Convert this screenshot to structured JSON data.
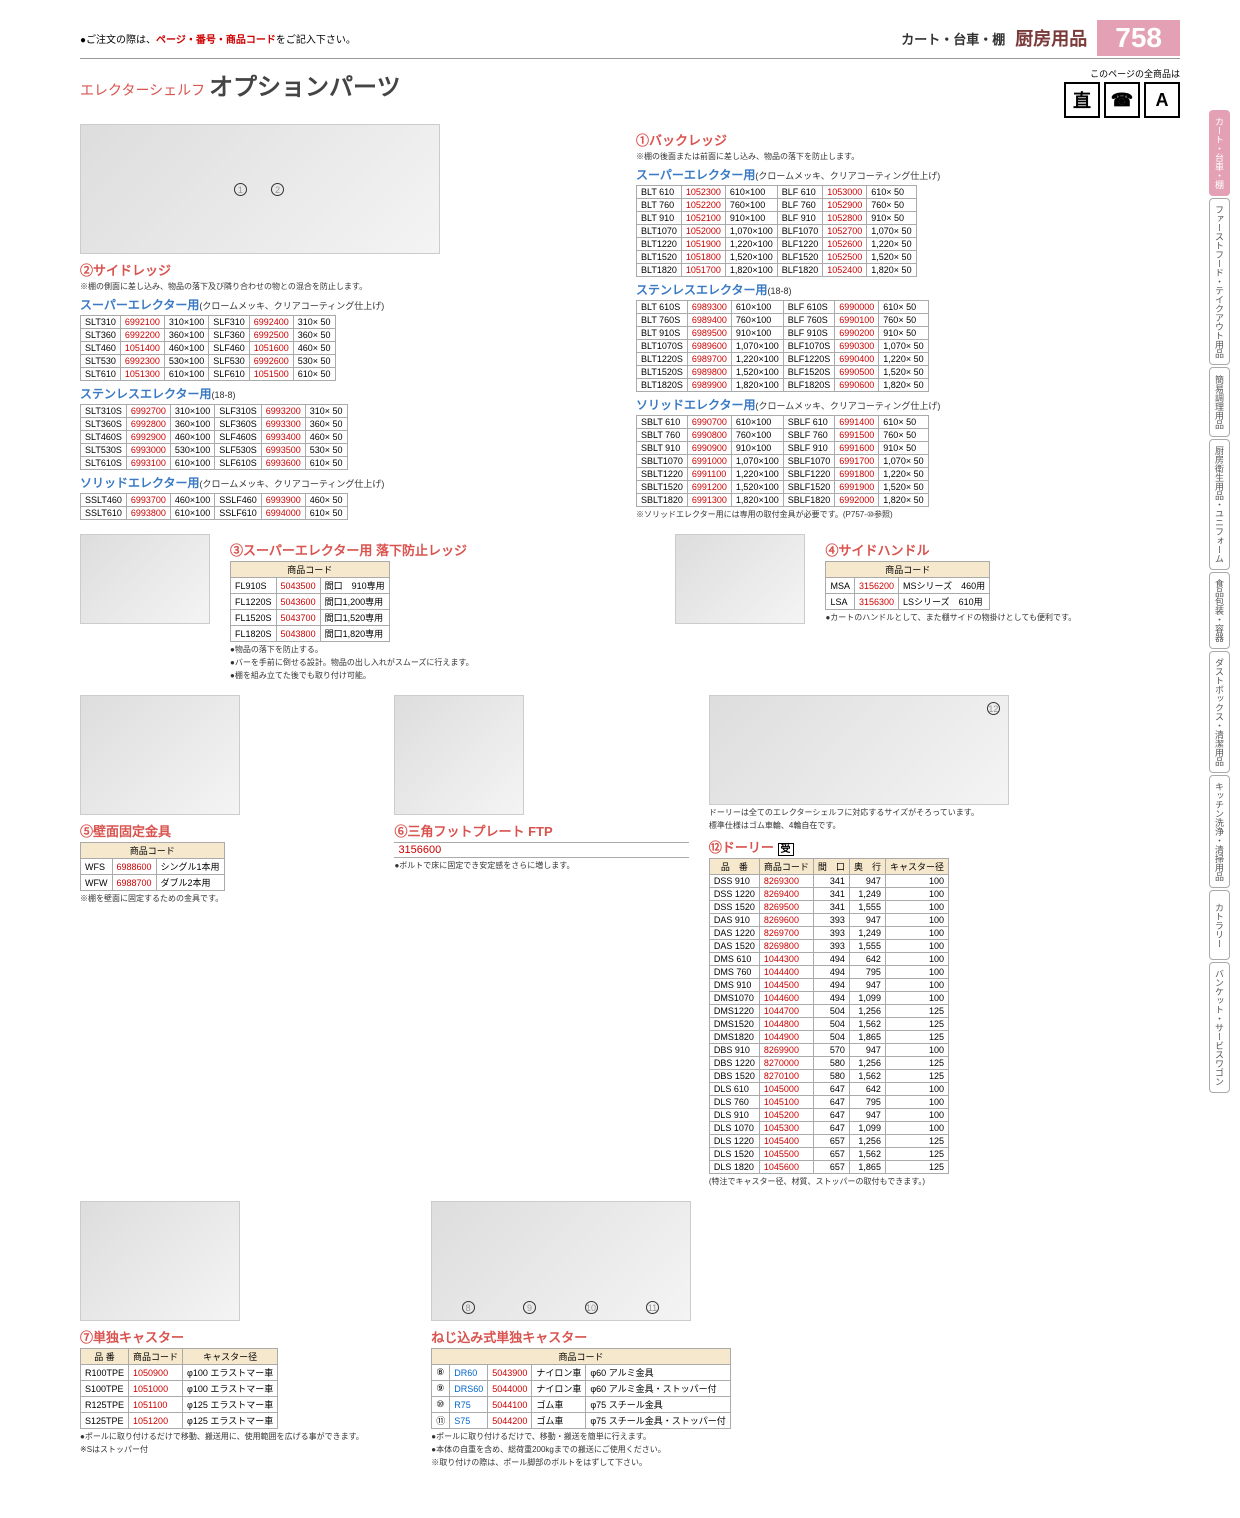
{
  "header": {
    "order_note_pre": "●ご注文の際は、",
    "order_note_red": "ページ・番号・商品コード",
    "order_note_post": "をご記入下さい。",
    "category": "カート・台車・棚",
    "main_category": "厨房用品",
    "page_number": "758"
  },
  "title": {
    "prefix": "エレクターシェルフ",
    "main": "オプションパーツ",
    "icons_note": "このページの全商品は",
    "icon1": "直",
    "icon2": "☎",
    "icon3": "A"
  },
  "side_tabs": [
    {
      "label": "カート・台車・棚",
      "active": true
    },
    {
      "label": "ファーストフード・テイクアウト用品"
    },
    {
      "label": "簡易調理用品"
    },
    {
      "label": "厨房衛生用品・ユニフォーム"
    },
    {
      "label": "食品包装・容器"
    },
    {
      "label": "ダストボックス・清潔用品"
    },
    {
      "label": "キッチン洗浄・清掃用品"
    },
    {
      "label": "カトラリー"
    },
    {
      "label": "バンケット・サービスワゴン"
    }
  ],
  "sections": {
    "back_ledge": {
      "num": "①",
      "title": "バックレッジ",
      "note": "※棚の後面または前面に差し込み、物品の落下を防止します。",
      "super": {
        "title": "スーパーエレクター用",
        "paren": "(クロームメッキ、クリアコーティング仕上げ)",
        "rows": [
          [
            "BLT 610",
            "1052300",
            "610×100",
            "BLF 610",
            "1053000",
            "610× 50"
          ],
          [
            "BLT 760",
            "1052200",
            "760×100",
            "BLF 760",
            "1052900",
            "760× 50"
          ],
          [
            "BLT 910",
            "1052100",
            "910×100",
            "BLF 910",
            "1052800",
            "910× 50"
          ],
          [
            "BLT1070",
            "1052000",
            "1,070×100",
            "BLF1070",
            "1052700",
            "1,070× 50"
          ],
          [
            "BLT1220",
            "1051900",
            "1,220×100",
            "BLF1220",
            "1052600",
            "1,220× 50"
          ],
          [
            "BLT1520",
            "1051800",
            "1,520×100",
            "BLF1520",
            "1052500",
            "1,520× 50"
          ],
          [
            "BLT1820",
            "1051700",
            "1,820×100",
            "BLF1820",
            "1052400",
            "1,820× 50"
          ]
        ]
      },
      "stainless": {
        "title": "ステンレスエレクター用",
        "paren": "(18-8)",
        "rows": [
          [
            "BLT 610S",
            "6989300",
            "610×100",
            "BLF 610S",
            "6990000",
            "610× 50"
          ],
          [
            "BLT 760S",
            "6989400",
            "760×100",
            "BLF 760S",
            "6990100",
            "760× 50"
          ],
          [
            "BLT 910S",
            "6989500",
            "910×100",
            "BLF 910S",
            "6990200",
            "910× 50"
          ],
          [
            "BLT1070S",
            "6989600",
            "1,070×100",
            "BLF1070S",
            "6990300",
            "1,070× 50"
          ],
          [
            "BLT1220S",
            "6989700",
            "1,220×100",
            "BLF1220S",
            "6990400",
            "1,220× 50"
          ],
          [
            "BLT1520S",
            "6989800",
            "1,520×100",
            "BLF1520S",
            "6990500",
            "1,520× 50"
          ],
          [
            "BLT1820S",
            "6989900",
            "1,820×100",
            "BLF1820S",
            "6990600",
            "1,820× 50"
          ]
        ]
      },
      "solid": {
        "title": "ソリッドエレクター用",
        "paren": "(クロームメッキ、クリアコーティング仕上げ)",
        "rows": [
          [
            "SBLT 610",
            "6990700",
            "610×100",
            "SBLF 610",
            "6991400",
            "610× 50"
          ],
          [
            "SBLT 760",
            "6990800",
            "760×100",
            "SBLF 760",
            "6991500",
            "760× 50"
          ],
          [
            "SBLT 910",
            "6990900",
            "910×100",
            "SBLF 910",
            "6991600",
            "910× 50"
          ],
          [
            "SBLT1070",
            "6991000",
            "1,070×100",
            "SBLF1070",
            "6991700",
            "1,070× 50"
          ],
          [
            "SBLT1220",
            "6991100",
            "1,220×100",
            "SBLF1220",
            "6991800",
            "1,220× 50"
          ],
          [
            "SBLT1520",
            "6991200",
            "1,520×100",
            "SBLF1520",
            "6991900",
            "1,520× 50"
          ],
          [
            "SBLT1820",
            "6991300",
            "1,820×100",
            "SBLF1820",
            "6992000",
            "1,820× 50"
          ]
        ],
        "footnote": "※ソリッドエレクター用には専用の取付金具が必要です。(P757-⑩参照)"
      }
    },
    "side_ledge": {
      "num": "②",
      "title": "サイドレッジ",
      "note": "※棚の側面に差し込み、物品の落下及び隣り合わせの物との混合を防止します。",
      "super": {
        "title": "スーパーエレクター用",
        "paren": "(クロームメッキ、クリアコーティング仕上げ)",
        "rows": [
          [
            "SLT310",
            "6992100",
            "310×100",
            "SLF310",
            "6992400",
            "310× 50"
          ],
          [
            "SLT360",
            "6992200",
            "360×100",
            "SLF360",
            "6992500",
            "360× 50"
          ],
          [
            "SLT460",
            "1051400",
            "460×100",
            "SLF460",
            "1051600",
            "460× 50"
          ],
          [
            "SLT530",
            "6992300",
            "530×100",
            "SLF530",
            "6992600",
            "530× 50"
          ],
          [
            "SLT610",
            "1051300",
            "610×100",
            "SLF610",
            "1051500",
            "610× 50"
          ]
        ]
      },
      "stainless": {
        "title": "ステンレスエレクター用",
        "paren": "(18-8)",
        "rows": [
          [
            "SLT310S",
            "6992700",
            "310×100",
            "SLF310S",
            "6993200",
            "310× 50"
          ],
          [
            "SLT360S",
            "6992800",
            "360×100",
            "SLF360S",
            "6993300",
            "360× 50"
          ],
          [
            "SLT460S",
            "6992900",
            "460×100",
            "SLF460S",
            "6993400",
            "460× 50"
          ],
          [
            "SLT530S",
            "6993000",
            "530×100",
            "SLF530S",
            "6993500",
            "530× 50"
          ],
          [
            "SLT610S",
            "6993100",
            "610×100",
            "SLF610S",
            "6993600",
            "610× 50"
          ]
        ]
      },
      "solid": {
        "title": "ソリッドエレクター用",
        "paren": "(クロームメッキ、クリアコーティング仕上げ)",
        "rows": [
          [
            "SSLT460",
            "6993700",
            "460×100",
            "SSLF460",
            "6993900",
            "460× 50"
          ],
          [
            "SSLT610",
            "6993800",
            "610×100",
            "SSLF610",
            "6994000",
            "610× 50"
          ]
        ]
      }
    },
    "fall_ledge": {
      "num": "③",
      "title": "スーパーエレクター用 落下防止レッジ",
      "header": "商品コード",
      "rows": [
        [
          "FL910S",
          "5043500",
          "間口　910専用"
        ],
        [
          "FL1220S",
          "5043600",
          "間口1,200専用"
        ],
        [
          "FL1520S",
          "5043700",
          "間口1,520専用"
        ],
        [
          "FL1820S",
          "5043800",
          "間口1,820専用"
        ]
      ],
      "notes": [
        "●物品の落下を防止する。",
        "●バーを手前に倒せる設計。物品の出し入れがスムーズに行えます。",
        "●棚を組み立てた後でも取り付け可能。"
      ]
    },
    "side_handle": {
      "num": "④",
      "title": "サイドハンドル",
      "header": "商品コード",
      "rows": [
        [
          "MSA",
          "3156200",
          "MSシリーズ　460用"
        ],
        [
          "LSA",
          "3156300",
          "LSシリーズ　610用"
        ]
      ],
      "note": "●カートのハンドルとして、また棚サイドの物掛けとしても便利です。"
    },
    "wall_bracket": {
      "num": "⑤",
      "title": "壁面固定金具",
      "header": "商品コード",
      "rows": [
        [
          "WFS",
          "6988600",
          "シングル1本用"
        ],
        [
          "WFW",
          "6988700",
          "ダブル2本用"
        ]
      ],
      "note": "※棚を壁面に固定するための金具です。"
    },
    "foot_plate": {
      "num": "⑥",
      "title": "三角フットプレート FTP",
      "code": "3156600",
      "note": "●ボルトで床に固定でき安定感をさらに増します。"
    },
    "single_caster": {
      "num": "⑦",
      "title": "単独キャスター",
      "headers": [
        "品 番",
        "商品コード",
        "キャスター径"
      ],
      "rows": [
        [
          "R100TPE",
          "1050900",
          "φ100 エラストマー車"
        ],
        [
          "S100TPE",
          "1051000",
          "φ100 エラストマー車"
        ],
        [
          "R125TPE",
          "1051100",
          "φ125 エラストマー車"
        ],
        [
          "S125TPE",
          "1051200",
          "φ125 エラストマー車"
        ]
      ],
      "notes": [
        "●ポールに取り付けるだけで移動、搬送用に、使用範囲を広げる事ができます。",
        "※Sはストッパー付"
      ]
    },
    "screw_caster": {
      "title": "ねじ込み式単独キャスター",
      "header": "商品コード",
      "rows": [
        [
          "⑧",
          "DR60",
          "5043900",
          "ナイロン車",
          "φ60 アルミ金具"
        ],
        [
          "⑨",
          "DRS60",
          "5044000",
          "ナイロン車",
          "φ60 アルミ金具・ストッパー付"
        ],
        [
          "⑩",
          "R75",
          "5044100",
          "ゴム車",
          "φ75 スチール金具"
        ],
        [
          "⑪",
          "S75",
          "5044200",
          "ゴム車",
          "φ75 スチール金具・ストッパー付"
        ]
      ],
      "notes": [
        "●ポールに取り付けるだけで、移動・搬送を簡単に行えます。",
        "●本体の自重を含め、総荷重200kgまでの搬送にご使用ください。",
        "※取り付けの際は、ポール脚部のボルトをはずして下さい。"
      ]
    },
    "dolly": {
      "num": "⑫",
      "title": "ドーリー",
      "mark": "受",
      "intro": [
        "ドーリーは全てのエレクターシェルフに対応するサイズがそろっています。",
        "標準仕様はゴム車輪、4輪自在です。"
      ],
      "headers": [
        "品　番",
        "商品コード",
        "間　口",
        "奥　行",
        "キャスター径"
      ],
      "rows": [
        [
          "DSS 910",
          "8269300",
          "341",
          "947",
          "100"
        ],
        [
          "DSS 1220",
          "8269400",
          "341",
          "1,249",
          "100"
        ],
        [
          "DSS 1520",
          "8269500",
          "341",
          "1,555",
          "100"
        ],
        [
          "DAS 910",
          "8269600",
          "393",
          "947",
          "100"
        ],
        [
          "DAS 1220",
          "8269700",
          "393",
          "1,249",
          "100"
        ],
        [
          "DAS 1520",
          "8269800",
          "393",
          "1,555",
          "100"
        ],
        [
          "DMS 610",
          "1044300",
          "494",
          "642",
          "100"
        ],
        [
          "DMS 760",
          "1044400",
          "494",
          "795",
          "100"
        ],
        [
          "DMS 910",
          "1044500",
          "494",
          "947",
          "100"
        ],
        [
          "DMS1070",
          "1044600",
          "494",
          "1,099",
          "100"
        ],
        [
          "DMS1220",
          "1044700",
          "504",
          "1,256",
          "125"
        ],
        [
          "DMS1520",
          "1044800",
          "504",
          "1,562",
          "125"
        ],
        [
          "DMS1820",
          "1044900",
          "504",
          "1,865",
          "125"
        ],
        [
          "DBS 910",
          "8269900",
          "570",
          "947",
          "100"
        ],
        [
          "DBS 1220",
          "8270000",
          "580",
          "1,256",
          "125"
        ],
        [
          "DBS 1520",
          "8270100",
          "580",
          "1,562",
          "125"
        ],
        [
          "DLS 610",
          "1045000",
          "647",
          "642",
          "100"
        ],
        [
          "DLS 760",
          "1045100",
          "647",
          "795",
          "100"
        ],
        [
          "DLS 910",
          "1045200",
          "647",
          "947",
          "100"
        ],
        [
          "DLS 1070",
          "1045300",
          "647",
          "1,099",
          "100"
        ],
        [
          "DLS 1220",
          "1045400",
          "657",
          "1,256",
          "125"
        ],
        [
          "DLS 1520",
          "1045500",
          "657",
          "1,562",
          "125"
        ],
        [
          "DLS 1820",
          "1045600",
          "657",
          "1,865",
          "125"
        ]
      ],
      "footnote": "(特注でキャスター径、材質、ストッパーの取付もできます。)"
    }
  }
}
